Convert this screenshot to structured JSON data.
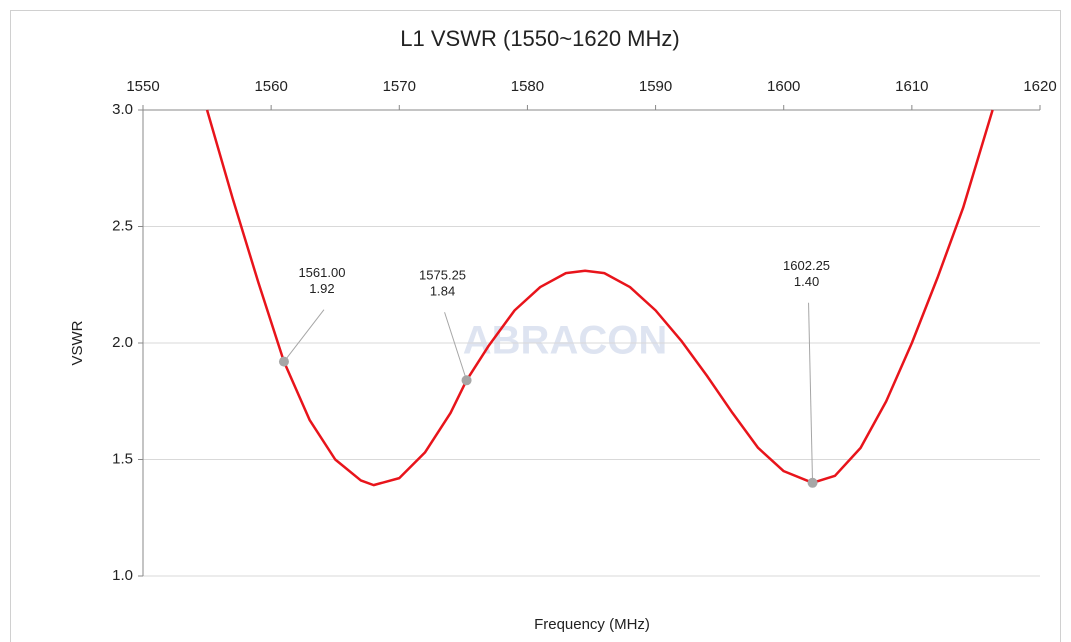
{
  "chart_data": {
    "type": "line",
    "title": "L1 VSWR (1550~1620 MHz)",
    "x_label": "Frequency (MHz)",
    "y_label": "VSWR",
    "watermark": "ABRACON",
    "xlim": [
      1550,
      1620
    ],
    "xticks": [
      1550,
      1560,
      1570,
      1580,
      1590,
      1600,
      1610,
      1620
    ],
    "ylim": [
      1.0,
      3.0
    ],
    "yticks": [
      {
        "value": 3.0,
        "label": "3.0"
      },
      {
        "value": 2.5,
        "label": "2.5"
      },
      {
        "value": 2.0,
        "label": "2.0"
      },
      {
        "value": 1.5,
        "label": "1.5"
      },
      {
        "value": 1.0,
        "label": "1.0"
      }
    ],
    "grid": true,
    "series": [
      {
        "name": "L1 VSWR",
        "color": "#e8141b",
        "x": [
          1555,
          1557,
          1559,
          1561,
          1563,
          1565,
          1567,
          1568,
          1570,
          1572,
          1574,
          1575.25,
          1577,
          1579,
          1581,
          1583,
          1584.5,
          1586,
          1588,
          1590,
          1592,
          1594,
          1596,
          1598,
          1600,
          1602.25,
          1604,
          1606,
          1608,
          1610,
          1612,
          1614,
          1616.3
        ],
        "values": [
          3.0,
          2.62,
          2.26,
          1.92,
          1.67,
          1.5,
          1.41,
          1.39,
          1.42,
          1.53,
          1.7,
          1.84,
          1.99,
          2.14,
          2.24,
          2.3,
          2.31,
          2.3,
          2.24,
          2.14,
          2.01,
          1.86,
          1.7,
          1.55,
          1.45,
          1.4,
          1.43,
          1.55,
          1.75,
          2.0,
          2.28,
          2.58,
          3.0
        ]
      }
    ],
    "annotations": [
      {
        "x": 1561,
        "y": 1.92,
        "x_label": "1561.00",
        "y_label": "1.92"
      },
      {
        "x": 1575.25,
        "y": 1.84,
        "x_label": "1575.25",
        "y_label": "1.84"
      },
      {
        "x": 1602.25,
        "y": 1.4,
        "x_label": "1602.25",
        "y_label": "1.40"
      }
    ],
    "marker_color": "#a6a6a6"
  }
}
